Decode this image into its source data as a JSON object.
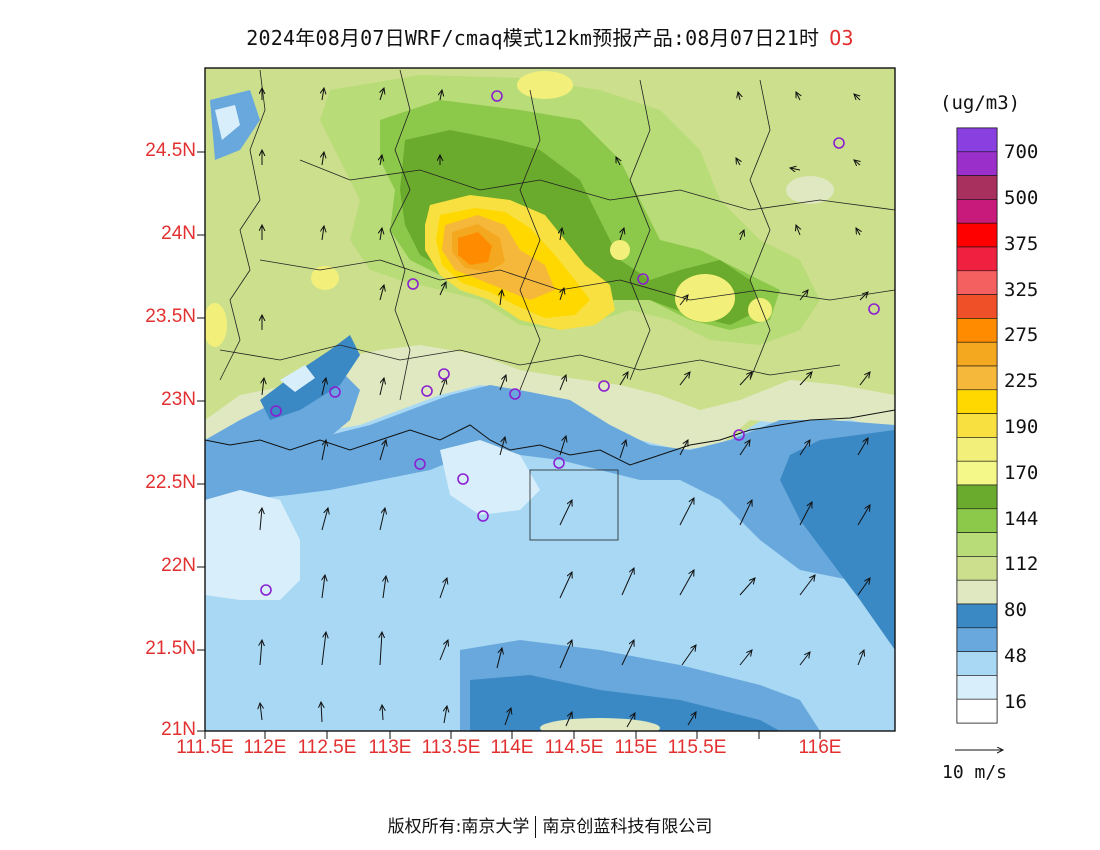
{
  "header": {
    "title": "2024年08月07日WRF/cmaq模式12km预报产品:08月07日21时",
    "pollutant": "O3"
  },
  "map": {
    "lat_labels": [
      "24.5N",
      "24N",
      "23.5N",
      "23N",
      "22.5N",
      "22N",
      "21.5N",
      "21N"
    ],
    "lon_labels": [
      "111.5E",
      "112E",
      "112.5E",
      "113E",
      "113.5E",
      "114E",
      "114.5E",
      "115E",
      "115.5E",
      "116E"
    ]
  },
  "colorbar": {
    "unit": "(ug/m3)",
    "labels": [
      "700",
      "500",
      "375",
      "325",
      "275",
      "225",
      "190",
      "170",
      "144",
      "112",
      "80",
      "48",
      "16"
    ],
    "colors": [
      "#8a3fe0",
      "#9b2fc9",
      "#a8305e",
      "#c81a7a",
      "#ff0000",
      "#f02040",
      "#f46060",
      "#f05028",
      "#ff8c00",
      "#f4a820",
      "#f6b83a",
      "#ffd800",
      "#f8e040",
      "#f2f07a",
      "#f4f888",
      "#6aaa2c",
      "#8cc84a",
      "#b8dc78",
      "#ccdf8c",
      "#dfe8c0",
      "#3a88c4",
      "#68a8dc",
      "#a8d8f4",
      "#d8eefa",
      "#ffffff"
    ]
  },
  "vector_key": {
    "label": "10 m/s"
  },
  "footer": {
    "left": "版权所有:南京大学",
    "right": "南京创蓝科技有限公司"
  }
}
